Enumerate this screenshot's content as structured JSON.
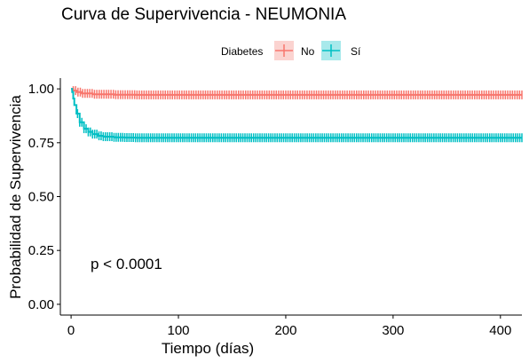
{
  "chart_data": {
    "type": "line",
    "title": "Curva de Supervivencia - NEUMONIA",
    "xlabel": "Tiempo (días)",
    "ylabel": "Probabilidad de Supervivencia",
    "xlim": [
      -10,
      420
    ],
    "ylim": [
      -0.05,
      1.05
    ],
    "x_ticks": [
      0,
      100,
      200,
      300,
      400
    ],
    "x_tick_labels": [
      "0",
      "100",
      "200",
      "300",
      "400"
    ],
    "y_ticks": [
      0,
      0.25,
      0.5,
      0.75,
      1
    ],
    "y_tick_labels": [
      "0.00",
      "0.25",
      "0.50",
      "0.75",
      "1.00"
    ],
    "legend": {
      "title": "Diabetes",
      "position": "top"
    },
    "annotation": "p < 0.0001",
    "series": [
      {
        "name": "No",
        "color": "#F8766D",
        "x": [
          0,
          2,
          5,
          10,
          20,
          40,
          60,
          100,
          200,
          300,
          420
        ],
        "y": [
          1.0,
          0.992,
          0.985,
          0.979,
          0.975,
          0.973,
          0.972,
          0.972,
          0.972,
          0.972,
          0.972
        ]
      },
      {
        "name": "Sí",
        "color": "#00BFC4",
        "x": [
          0,
          1,
          2,
          3,
          5,
          8,
          12,
          16,
          20,
          25,
          30,
          40,
          50,
          60,
          100,
          200,
          300,
          420
        ],
        "y": [
          1.0,
          0.985,
          0.955,
          0.925,
          0.885,
          0.845,
          0.815,
          0.8,
          0.79,
          0.782,
          0.778,
          0.775,
          0.774,
          0.773,
          0.773,
          0.773,
          0.773,
          0.773
        ]
      }
    ]
  }
}
